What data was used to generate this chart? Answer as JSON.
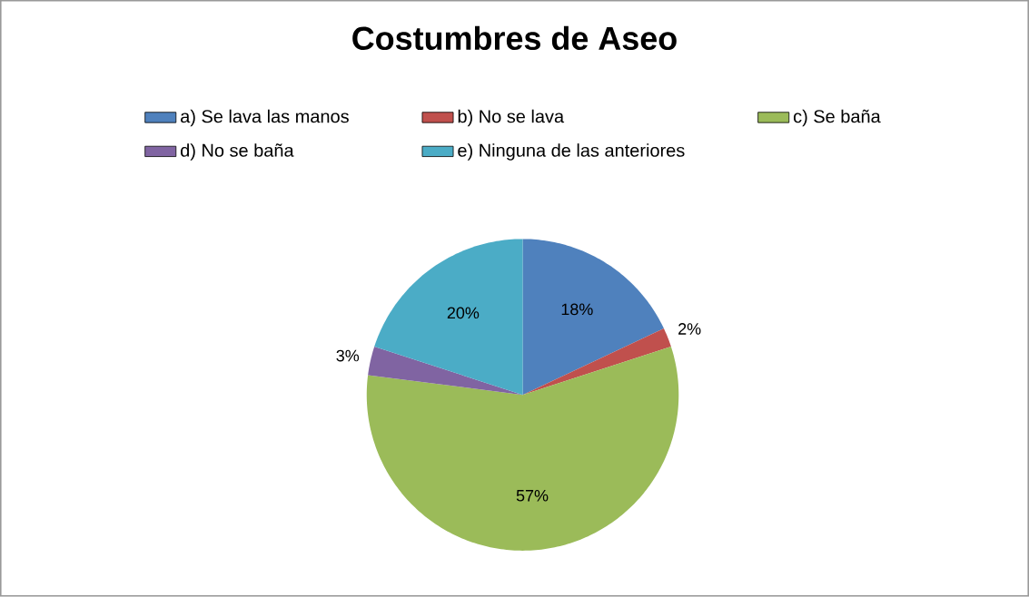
{
  "chart_data": {
    "type": "pie",
    "title": "Costumbres de Aseo",
    "categories": [
      "a) Se lava las manos",
      "b) No se lava",
      "c) Se baña",
      "d) No se baña",
      "e) Ninguna de las anteriores"
    ],
    "values": [
      18,
      2,
      57,
      3,
      20
    ],
    "value_labels": [
      "18%",
      "2%",
      "57%",
      "3%",
      "20%"
    ],
    "colors": [
      "#4f81bd",
      "#c0504d",
      "#9bbb59",
      "#8064a2",
      "#4bacc6"
    ],
    "legend": "top"
  }
}
